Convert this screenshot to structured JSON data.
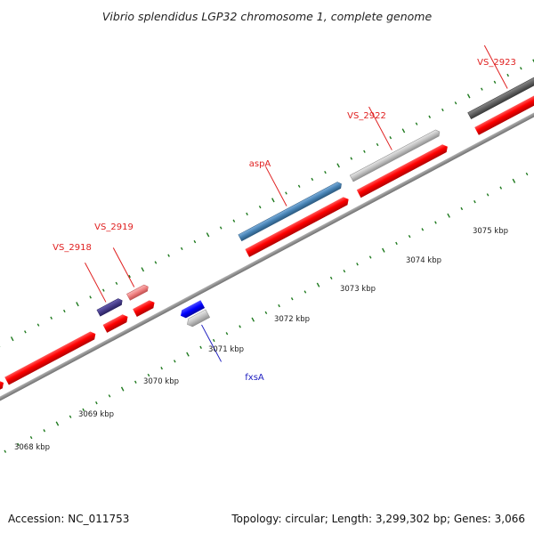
{
  "title": "Vibrio splendidus LGP32 chromosome 1, complete genome",
  "footer": {
    "accession": "Accession: NC_011753",
    "summary": "Topology: circular; Length: 3,299,302 bp; Genes: 3,066"
  },
  "colors": {
    "backbone": "#8c8c8c",
    "tick": "#1e7a1e",
    "cds": "#ff0000",
    "label_top": "#e02020",
    "label_bottom": "#2020c0"
  },
  "scale_labels": [
    "3068 kbp",
    "3069 kbp",
    "3070 kbp",
    "3071 kbp",
    "3072 kbp",
    "3073 kbp",
    "3074 kbp",
    "3075 kbp"
  ],
  "gene_labels": [
    {
      "id": "vs2918",
      "text": "VS_2918",
      "color": "#e02020"
    },
    {
      "id": "vs2919",
      "text": "VS_2919",
      "color": "#e02020"
    },
    {
      "id": "aspa",
      "text": "aspA",
      "color": "#e02020"
    },
    {
      "id": "vs2922",
      "text": "VS_2922",
      "color": "#e02020"
    },
    {
      "id": "vs2923",
      "text": "VS_2923",
      "color": "#e02020"
    },
    {
      "id": "fxsa",
      "text": "fxsA",
      "color": "#2020c0"
    }
  ]
}
